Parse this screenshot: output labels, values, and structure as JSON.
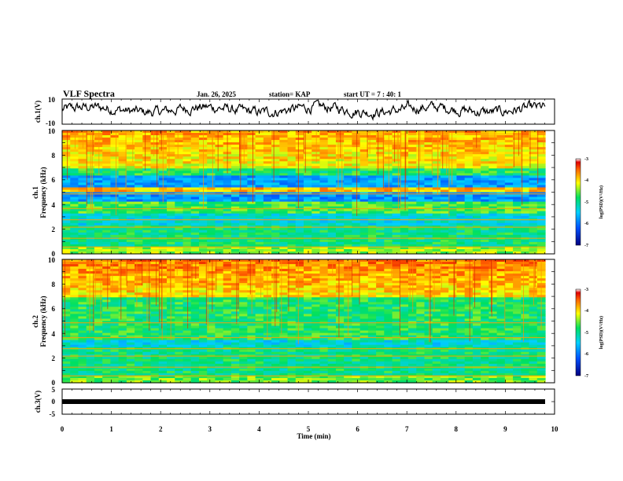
{
  "header": {
    "title": "VLF Spectra",
    "date": "Jan. 26, 2025",
    "station": "station= KAP",
    "start": "start  UT =   7 : 40: 1"
  },
  "chart_data": [
    {
      "type": "line",
      "name": "ch1-voltage",
      "ylabel": "ch.1(V)",
      "ylim": [
        -10,
        10
      ],
      "y_ticks": [
        "10",
        "-10"
      ],
      "xlim": [
        0,
        10
      ],
      "description_values": "noisy waveform oscillating roughly between -5 and 8 V"
    },
    {
      "type": "heatmap",
      "name": "ch1-spectrogram",
      "ylabel": "ch.1",
      "ylabel2": "Frequency  (kHz)",
      "ylim": [
        0,
        10
      ],
      "y_ticks": [
        "0",
        "2",
        "4",
        "6",
        "8",
        "10"
      ],
      "xlim": [
        0,
        10
      ],
      "colorbar": {
        "label": "log(PSD)(V²/Hz)",
        "range": [
          -7,
          -3
        ],
        "ticks": [
          "-3",
          "-4",
          "-5",
          "-6",
          "-7"
        ]
      }
    },
    {
      "type": "heatmap",
      "name": "ch2-spectrogram",
      "ylabel": "ch.2",
      "ylabel2": "Frequency  (kHz)",
      "ylim": [
        0,
        10
      ],
      "y_ticks": [
        "0",
        "2",
        "4",
        "6",
        "8",
        "10"
      ],
      "xlim": [
        0,
        10
      ],
      "colorbar": {
        "label": "log(PSD)(V²/Hz)",
        "range": [
          -7,
          -3
        ],
        "ticks": [
          "-3",
          "-4",
          "-5",
          "-6",
          "-7"
        ]
      }
    },
    {
      "type": "line",
      "name": "ch3-voltage",
      "ylabel": "ch.3(V)",
      "ylim": [
        -5,
        5
      ],
      "y_ticks": [
        "5",
        "0",
        "-5"
      ],
      "xlim": [
        0,
        10
      ],
      "xlabel": "Time  (min)",
      "x_ticks": [
        "0",
        "1",
        "2",
        "3",
        "4",
        "5",
        "6",
        "7",
        "8",
        "9",
        "10"
      ],
      "y_values_constant": -1.5
    }
  ]
}
